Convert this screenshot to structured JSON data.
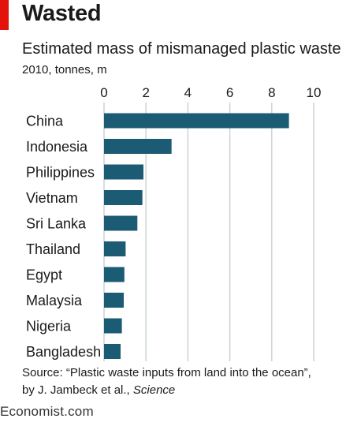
{
  "header": {
    "title": "Wasted",
    "subtitle": "Estimated mass of mismanaged plastic waste",
    "units": "2010, tonnes, m"
  },
  "footer": {
    "source_line1": "Source: “Plastic waste inputs from land into the ocean”,",
    "source_line2": "by J. Jambeck et al., ",
    "source_journal": "Science",
    "brand": "Economist.com"
  },
  "colors": {
    "accent": "#e3120b",
    "bar": "#1b5b74"
  },
  "chart_data": {
    "type": "bar",
    "orientation": "horizontal",
    "title": "Wasted",
    "subtitle": "Estimated mass of mismanaged plastic waste",
    "units": "2010, tonnes, m",
    "categories": [
      "China",
      "Indonesia",
      "Philippines",
      "Vietnam",
      "Sri Lanka",
      "Thailand",
      "Egypt",
      "Malaysia",
      "Nigeria",
      "Bangladesh"
    ],
    "values": [
      8.82,
      3.22,
      1.88,
      1.83,
      1.59,
      1.03,
      0.97,
      0.94,
      0.85,
      0.79
    ],
    "xlim": [
      0,
      10
    ],
    "ticks": [
      0,
      2,
      4,
      6,
      8,
      10
    ],
    "tick_position": "top",
    "grid": "vertical"
  }
}
